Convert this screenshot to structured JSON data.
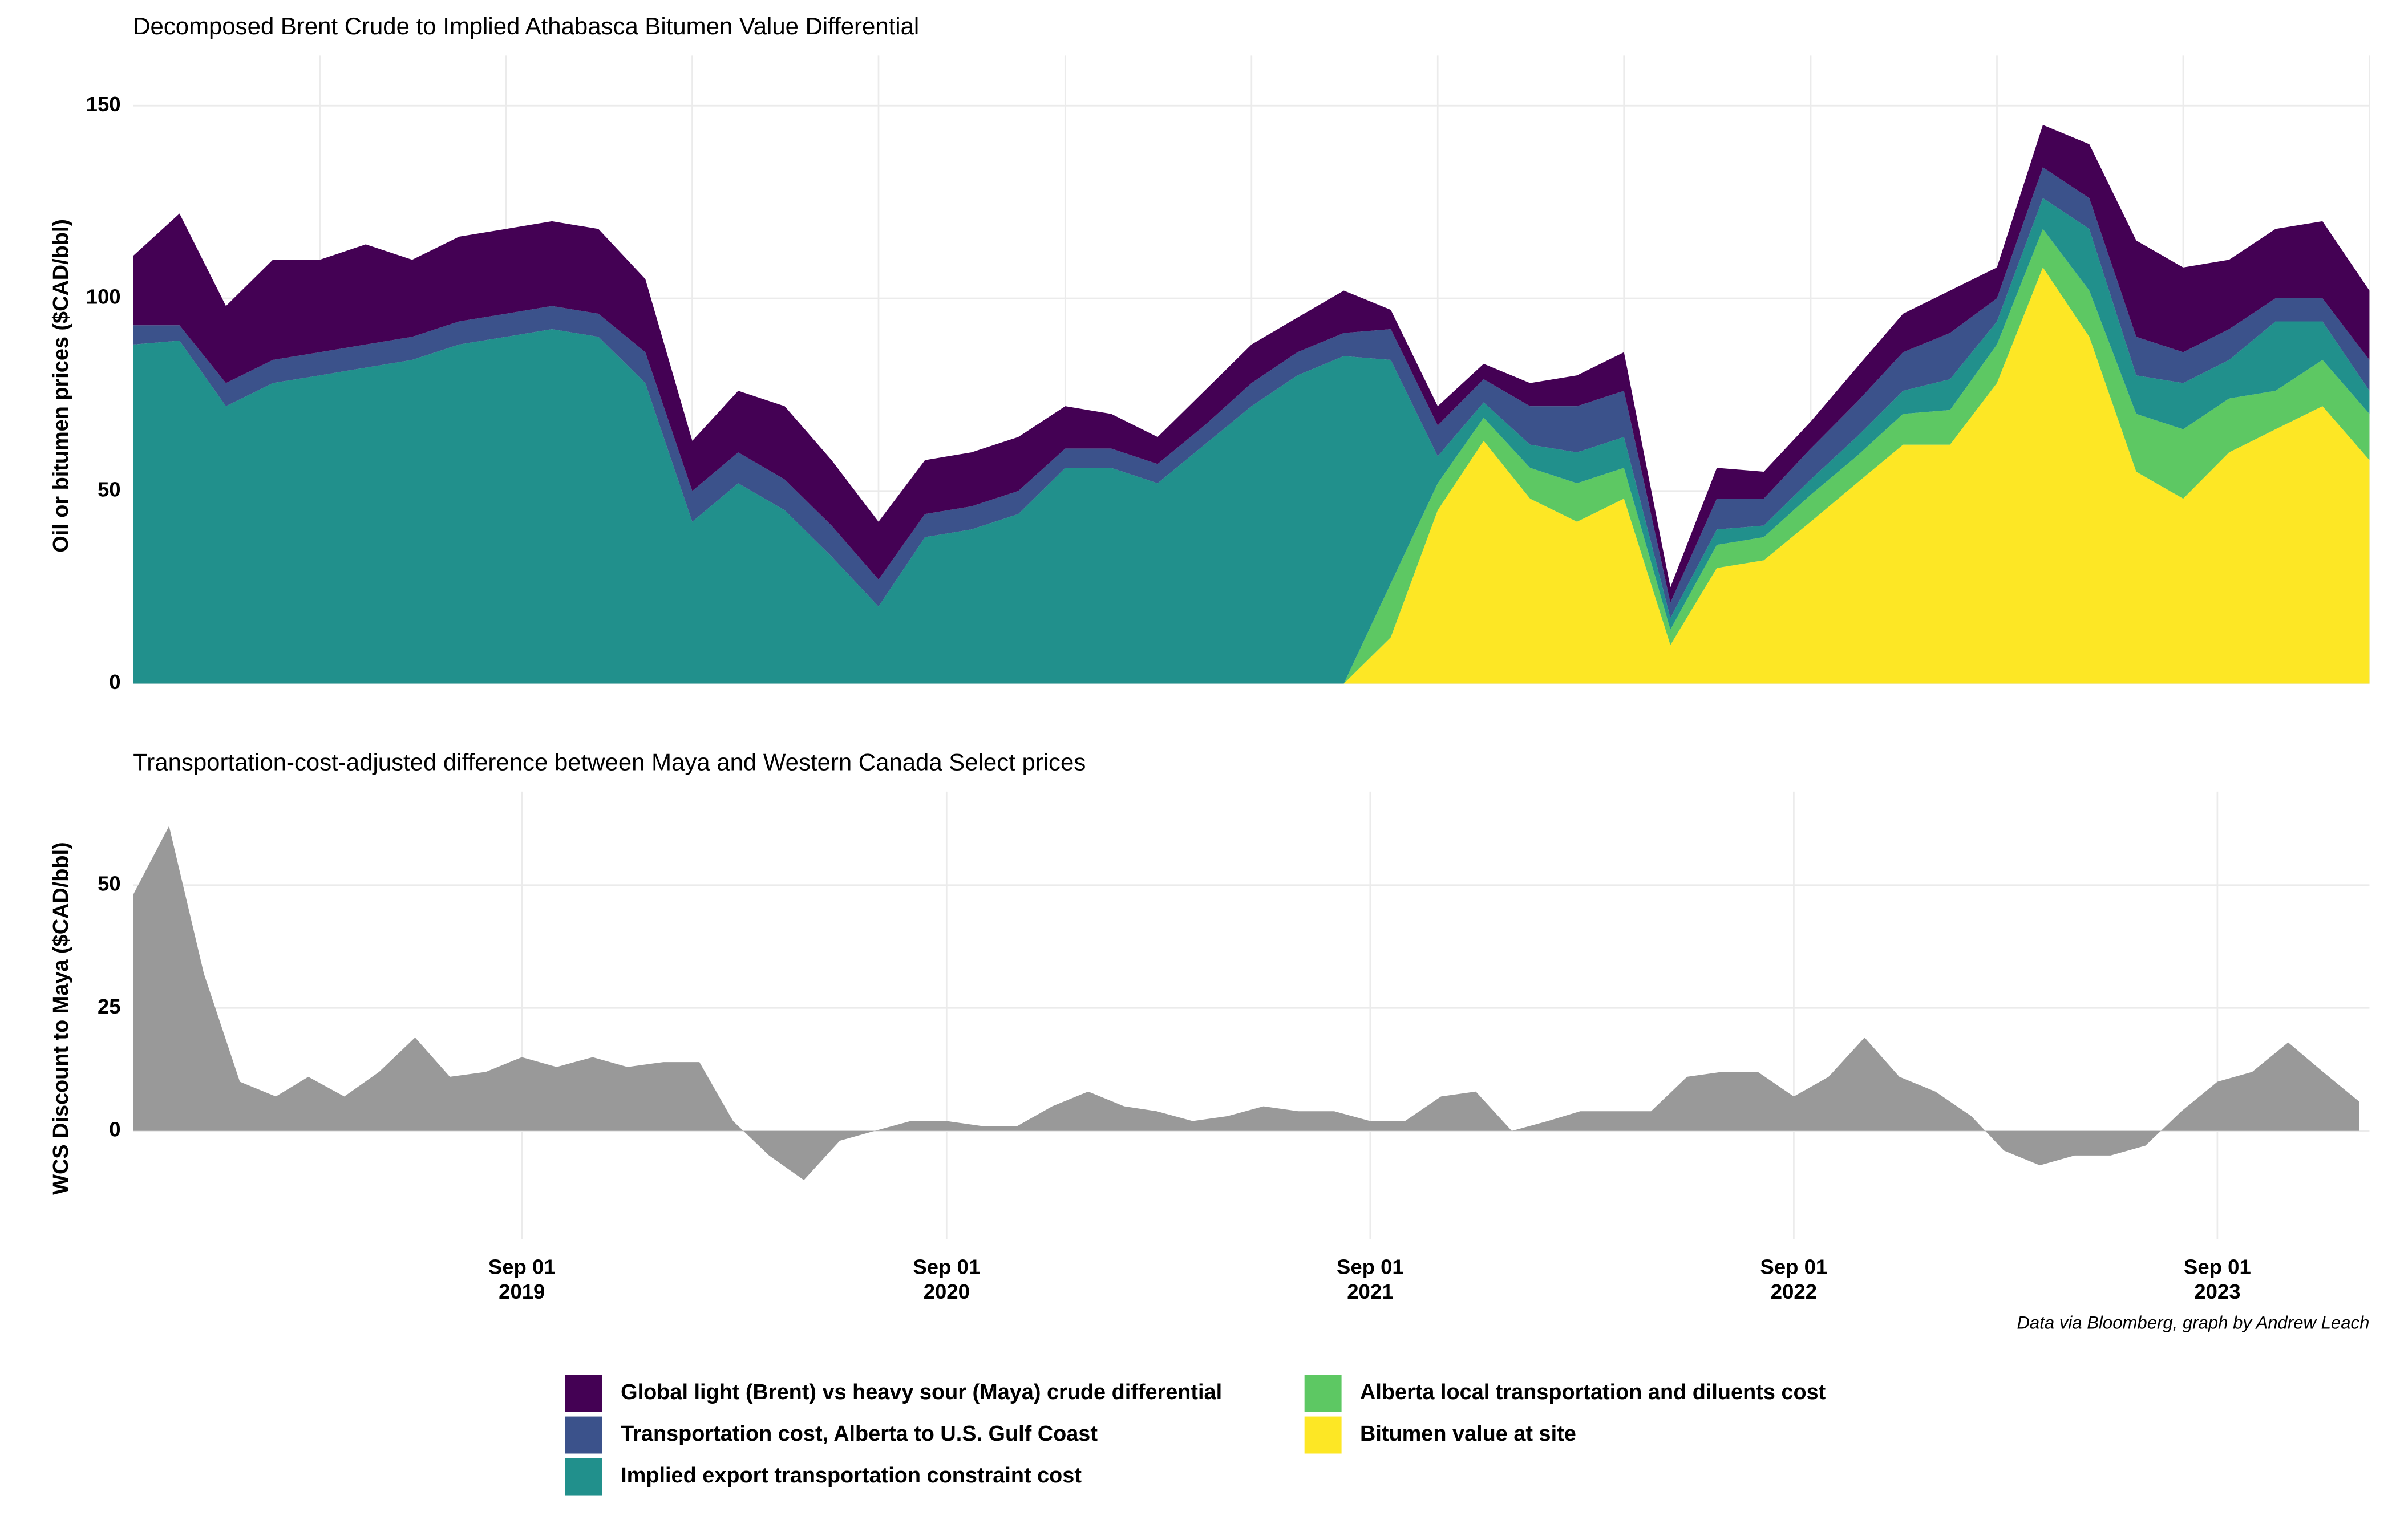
{
  "chart_data": [
    {
      "type": "stacked_area",
      "title": "Decomposed Brent Crude to Implied Athabasca Bitumen Value Differential",
      "y_label": "Oil or bitumen prices ($CAD/bbl)",
      "xlim": [
        "2012-01-01",
        "2024-01-01"
      ],
      "xticks": [
        "2013-01-01",
        "2014-01-01",
        "2015-01-01",
        "2016-01-01",
        "2017-01-01",
        "2018-01-01",
        "2019-01-01",
        "2020-01-01",
        "2021-01-01",
        "2022-01-01",
        "2023-01-01",
        "2024-01-01"
      ],
      "ylim": [
        0,
        163
      ],
      "yticks": [
        0,
        50,
        100,
        150
      ],
      "grid": true,
      "x": [
        "2012-01-01",
        "2012-04-01",
        "2012-07-01",
        "2012-10-01",
        "2013-01-01",
        "2013-04-01",
        "2013-07-01",
        "2013-10-01",
        "2014-01-01",
        "2014-04-01",
        "2014-07-01",
        "2014-10-01",
        "2015-01-01",
        "2015-04-01",
        "2015-07-01",
        "2015-10-01",
        "2016-01-01",
        "2016-04-01",
        "2016-07-01",
        "2016-10-01",
        "2017-01-01",
        "2017-04-01",
        "2017-07-01",
        "2017-10-01",
        "2018-01-01",
        "2018-04-01",
        "2018-07-01",
        "2018-10-01",
        "2019-01-01",
        "2019-04-01",
        "2019-07-01",
        "2019-10-01",
        "2020-01-01",
        "2020-04-01",
        "2020-07-01",
        "2020-10-01",
        "2021-01-01",
        "2021-04-01",
        "2021-07-01",
        "2021-10-01",
        "2022-01-01",
        "2022-04-01",
        "2022-07-01",
        "2022-10-01",
        "2023-01-01",
        "2023-04-01",
        "2023-07-01",
        "2023-10-01",
        "2024-01-01"
      ],
      "series": [
        {
          "name": "Bitumen value at site",
          "color": "#fde725",
          "values": [
            0,
            0,
            0,
            0,
            0,
            0,
            0,
            0,
            0,
            0,
            0,
            0,
            0,
            0,
            0,
            0,
            0,
            0,
            0,
            0,
            0,
            0,
            0,
            0,
            0,
            0,
            0,
            12,
            45,
            63,
            48,
            42,
            48,
            10,
            30,
            32,
            42,
            52,
            62,
            62,
            78,
            108,
            90,
            55,
            48,
            60,
            66,
            72,
            58
          ]
        },
        {
          "name": "Alberta local transportation and diluents cost",
          "color": "#5dc863",
          "values": [
            0,
            0,
            0,
            0,
            0,
            0,
            0,
            0,
            0,
            0,
            0,
            0,
            0,
            0,
            0,
            0,
            0,
            0,
            0,
            0,
            0,
            0,
            0,
            0,
            0,
            0,
            0,
            14,
            7,
            6,
            8,
            10,
            8,
            4,
            6,
            6,
            7,
            7,
            8,
            9,
            10,
            10,
            12,
            15,
            18,
            14,
            10,
            12,
            12
          ]
        },
        {
          "name": "Implied export transportation constraint cost",
          "color": "#21908c",
          "values": [
            88,
            89,
            72,
            78,
            80,
            82,
            84,
            88,
            90,
            92,
            90,
            78,
            42,
            52,
            45,
            33,
            20,
            38,
            40,
            44,
            56,
            56,
            52,
            62,
            72,
            80,
            85,
            58,
            7,
            4,
            6,
            8,
            8,
            3,
            4,
            3,
            4,
            5,
            6,
            8,
            6,
            8,
            16,
            10,
            12,
            10,
            18,
            10,
            6
          ]
        },
        {
          "name": "Transportation cost, Alberta to U.S. Gulf Coast",
          "color": "#3b528b",
          "values": [
            5,
            4,
            6,
            6,
            6,
            6,
            6,
            6,
            6,
            6,
            6,
            8,
            8,
            8,
            8,
            8,
            7,
            6,
            6,
            6,
            5,
            5,
            5,
            5,
            6,
            6,
            6,
            8,
            8,
            6,
            10,
            12,
            12,
            4,
            8,
            7,
            8,
            9,
            10,
            12,
            6,
            8,
            8,
            10,
            8,
            8,
            6,
            6,
            8
          ]
        },
        {
          "name": "Global light (Brent) vs heavy sour (Maya) crude differential",
          "color": "#440154",
          "values": [
            18,
            29,
            20,
            26,
            24,
            26,
            20,
            22,
            22,
            22,
            22,
            19,
            13,
            16,
            19,
            17,
            15,
            14,
            14,
            14,
            11,
            9,
            7,
            9,
            10,
            9,
            11,
            5,
            5,
            4,
            6,
            8,
            10,
            4,
            8,
            7,
            7,
            9,
            10,
            11,
            8,
            11,
            14,
            25,
            22,
            18,
            18,
            20,
            18
          ]
        }
      ]
    },
    {
      "type": "area",
      "title": "Transportation-cost-adjusted difference between Maya and Western Canada Select prices",
      "y_label": "WCS Discount to Maya ($CAD/bbl)",
      "caption": "Data via Bloomberg, graph by Andrew Leach",
      "xlim": [
        "2018-10-01",
        "2024-01-10"
      ],
      "xticks": [
        {
          "value": "2019-09-01",
          "label": [
            "Sep 01",
            "2019"
          ]
        },
        {
          "value": "2020-09-01",
          "label": [
            "Sep 01",
            "2020"
          ]
        },
        {
          "value": "2021-09-01",
          "label": [
            "Sep 01",
            "2021"
          ]
        },
        {
          "value": "2022-09-01",
          "label": [
            "Sep 01",
            "2022"
          ]
        },
        {
          "value": "2023-09-01",
          "label": [
            "Sep 01",
            "2023"
          ]
        }
      ],
      "ylim": [
        -22,
        69
      ],
      "yticks": [
        0,
        25,
        50
      ],
      "grid": true,
      "color": "#999999",
      "x": [
        "2018-10-01",
        "2018-11-01",
        "2018-12-01",
        "2019-01-01",
        "2019-02-01",
        "2019-03-01",
        "2019-04-01",
        "2019-05-01",
        "2019-06-01",
        "2019-07-01",
        "2019-08-01",
        "2019-09-01",
        "2019-10-01",
        "2019-11-01",
        "2019-12-01",
        "2020-01-01",
        "2020-02-01",
        "2020-03-01",
        "2020-04-01",
        "2020-05-01",
        "2020-06-01",
        "2020-07-01",
        "2020-08-01",
        "2020-09-01",
        "2020-10-01",
        "2020-11-01",
        "2020-12-01",
        "2021-01-01",
        "2021-02-01",
        "2021-03-01",
        "2021-04-01",
        "2021-05-01",
        "2021-06-01",
        "2021-07-01",
        "2021-08-01",
        "2021-09-01",
        "2021-10-01",
        "2021-11-01",
        "2021-12-01",
        "2022-01-01",
        "2022-02-01",
        "2022-03-01",
        "2022-04-01",
        "2022-05-01",
        "2022-06-01",
        "2022-07-01",
        "2022-08-01",
        "2022-09-01",
        "2022-10-01",
        "2022-11-01",
        "2022-12-01",
        "2023-01-01",
        "2023-02-01",
        "2023-03-01",
        "2023-04-01",
        "2023-05-01",
        "2023-06-01",
        "2023-07-01",
        "2023-08-01",
        "2023-09-01",
        "2023-10-01",
        "2023-11-01",
        "2023-12-01",
        "2024-01-01"
      ],
      "values": [
        48,
        62,
        32,
        10,
        7,
        11,
        7,
        12,
        19,
        11,
        12,
        15,
        13,
        15,
        13,
        14,
        14,
        2,
        -5,
        -10,
        -2,
        0,
        2,
        2,
        1,
        1,
        5,
        8,
        5,
        4,
        2,
        3,
        5,
        4,
        4,
        2,
        2,
        7,
        8,
        0,
        2,
        4,
        4,
        4,
        11,
        12,
        12,
        7,
        11,
        19,
        11,
        8,
        3,
        -4,
        -7,
        -5,
        -5,
        -3,
        4,
        10,
        12,
        18,
        12,
        6
      ]
    }
  ]
}
